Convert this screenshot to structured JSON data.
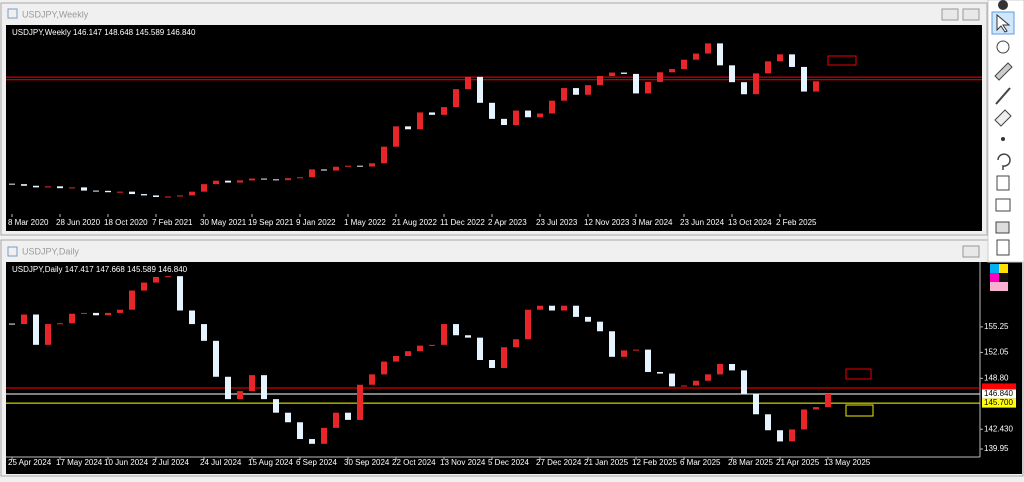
{
  "chart_data": [
    {
      "type": "candlestick",
      "title": "USDJPY,Weekly",
      "header": "USDJPY,Weekly  146.147 148.648 145.589 146.840",
      "categories": [
        "8 Mar 2020",
        null,
        null,
        null,
        "28 Jun 2020",
        null,
        null,
        null,
        "18 Oct 2020",
        null,
        null,
        null,
        "7 Feb 2021",
        null,
        null,
        null,
        "30 May 2021",
        null,
        null,
        null,
        "19 Sep 2021",
        null,
        null,
        null,
        "9 Jan 2022",
        null,
        null,
        null,
        "1 May 2022",
        null,
        null,
        null,
        "21 Aug 2022",
        null,
        null,
        null,
        "11 Dec 2022",
        null,
        null,
        null,
        "2 Apr 2023",
        null,
        null,
        null,
        "23 Jul 2023",
        null,
        null,
        null,
        "12 Nov 2023",
        null,
        null,
        null,
        "3 Mar 2024",
        null,
        null,
        null,
        "23 Jun 2024",
        null,
        null,
        null,
        "13 Oct 2024",
        null,
        null,
        null,
        "2 Feb 2025",
        null,
        null,
        null
      ],
      "values": [
        108.4,
        107.8,
        107.2,
        107.6,
        106.9,
        107.2,
        106.0,
        105.9,
        105.4,
        105.6,
        104.7,
        104.2,
        103.6,
        103.8,
        104.2,
        105.6,
        108.4,
        109.7,
        109.0,
        109.8,
        110.5,
        110.2,
        109.9,
        110.6,
        111.0,
        113.9,
        113.5,
        114.9,
        115.3,
        115.0,
        116.2,
        122.4,
        130.0,
        128.9,
        135.2,
        134.3,
        137.2,
        143.9,
        148.5,
        138.8,
        132.8,
        130.5,
        135.9,
        133.4,
        134.8,
        139.6,
        144.3,
        141.8,
        145.4,
        148.8,
        150.1,
        149.6,
        142.3,
        146.6,
        150.2,
        151.4,
        154.9,
        157.2,
        161.0,
        152.8,
        146.5,
        142.0,
        149.8,
        154.3,
        156.9,
        152.2,
        143.0,
        146.84
      ],
      "up_color": "#e8262a",
      "down_color": "#e6f4ff",
      "ylim": [
        98,
        166
      ],
      "yticks": [],
      "levels": [
        {
          "value": 148.4,
          "color": "#ff0000"
        },
        {
          "value": 147.4,
          "color": "#ff0000"
        }
      ]
    },
    {
      "type": "candlestick",
      "title": "USDJPY,Daily",
      "header": "USDJPY,Daily  147.417 147.668 145.589 146.840",
      "categories": [
        "25 Apr 2024",
        null,
        null,
        null,
        "17 May 2024",
        null,
        null,
        null,
        "10 Jun 2024",
        null,
        null,
        null,
        "2 Jul 2024",
        null,
        null,
        null,
        "24 Jul 2024",
        null,
        null,
        null,
        "15 Aug 2024",
        null,
        null,
        null,
        "6 Sep 2024",
        null,
        null,
        null,
        "30 Sep 2024",
        null,
        null,
        null,
        "22 Oct 2024",
        null,
        null,
        null,
        "13 Nov 2024",
        null,
        null,
        null,
        "5 Dec 2024",
        null,
        null,
        null,
        "27 Dec 2024",
        null,
        null,
        null,
        "21 Jan 2025",
        null,
        null,
        null,
        "12 Feb 2025",
        null,
        null,
        null,
        "6 Mar 2025",
        null,
        null,
        null,
        "28 Mar 2025",
        null,
        null,
        null,
        "21 Apr 2025",
        null,
        null,
        null,
        "13 May 2025"
      ],
      "values": [
        155.6,
        156.8,
        153.0,
        155.6,
        155.7,
        156.9,
        157.0,
        156.7,
        157.0,
        157.4,
        159.8,
        160.8,
        161.5,
        161.6,
        157.3,
        155.6,
        153.5,
        149.0,
        146.2,
        147.2,
        149.2,
        146.2,
        144.5,
        143.3,
        141.2,
        140.6,
        142.6,
        144.5,
        143.6,
        148.0,
        149.3,
        150.9,
        151.6,
        152.2,
        152.9,
        153.0,
        155.6,
        154.2,
        153.9,
        151.1,
        150.1,
        152.7,
        153.7,
        157.4,
        157.9,
        157.3,
        157.9,
        156.5,
        155.9,
        154.7,
        151.5,
        152.3,
        152.4,
        149.6,
        149.4,
        147.8,
        147.9,
        148.5,
        149.3,
        150.6,
        149.8,
        146.8,
        144.3,
        142.3,
        140.9,
        142.4,
        144.9,
        145.2,
        146.84
      ],
      "up_color": "#e8262a",
      "down_color": "#e6f4ff",
      "ylim": [
        139.2,
        163.0
      ],
      "yticks": [
        155.25,
        152.05,
        {
          "value": 148.8,
          "label": "148.80"
        },
        {
          "value": 142.43,
          "label": "142.430"
        },
        139.95
      ],
      "levels": [
        {
          "value": 147.6,
          "color": "#ff0000"
        },
        {
          "value": 146.84,
          "label": "146.840",
          "color": "#ffffff"
        },
        {
          "value": 145.7,
          "label": "145.700",
          "color": "#ffff00"
        }
      ]
    }
  ]
}
